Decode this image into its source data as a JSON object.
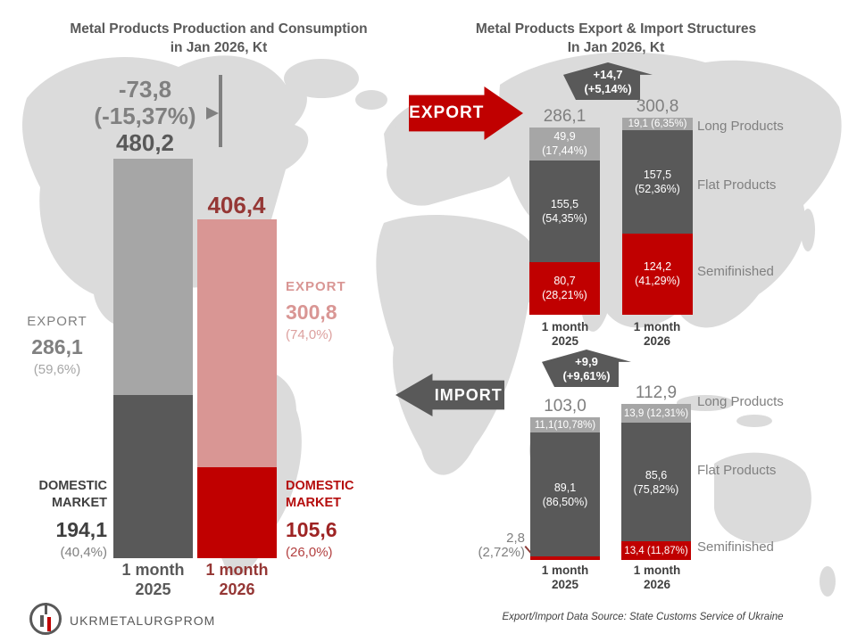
{
  "colors": {
    "accent_red": "#c00000",
    "brick_red": "#953735",
    "pink": "#d99694",
    "light_gray": "#a6a6a6",
    "mid_gray": "#808080",
    "dark_gray": "#595959",
    "text_dark": "#404040",
    "map_gray": "#dbdbdb"
  },
  "left_chart": {
    "title": [
      "Metal Products Production and Consumption",
      "in Jan 2026, Kt"
    ],
    "change": [
      "-73,8",
      "(-15,37%)"
    ],
    "total_2025": "480,2",
    "total_2026": "406,4",
    "y2025": {
      "export_label": "EXPORT",
      "export_value": "286,1",
      "export_pct": "(59,6%)",
      "dom_label": [
        "DOMESTIC",
        "MARKET"
      ],
      "dom_value": "194,1",
      "dom_pct": "(40,4%)",
      "x": [
        "1 month",
        "2025"
      ]
    },
    "y2026": {
      "export_label": "EXPORT",
      "export_value": "300,8",
      "export_pct": "(74,0%)",
      "dom_label": [
        "DOMESTIC",
        "MARKET"
      ],
      "dom_value": "105,6",
      "dom_pct": "(26,0%)",
      "x": [
        "1 month",
        "2026"
      ]
    }
  },
  "right_chart": {
    "title": [
      "Metal Products Export & Import Structures",
      "In Jan 2026, Kt"
    ],
    "export_arrow_label": "EXPORT",
    "import_arrow_label": "IMPORT",
    "export_change": [
      "+14,7",
      "(+5,14%)"
    ],
    "import_change": [
      "+9,9",
      "(+9,61%)"
    ],
    "legend": [
      "Long Products",
      "Flat Products",
      "Semifinished"
    ],
    "export_x": [
      [
        "1 month",
        "2025"
      ],
      [
        "1 month",
        "2026"
      ]
    ],
    "import_x": [
      [
        "1 month",
        "2025"
      ],
      [
        "1 month",
        "2026"
      ]
    ],
    "import_outside_label": [
      "2,8",
      "(2,72%)"
    ]
  },
  "logo_text": "UKRMETALURGPROM",
  "source_note": "Export/Import Data Source: State Customs Service of Ukraine",
  "chart_data": [
    {
      "type": "bar",
      "stacked": true,
      "title": "Metal Products Production and Consumption in Jan 2026, Kt",
      "categories": [
        "1 month 2025",
        "1 month 2026"
      ],
      "totals": [
        480.2,
        406.4
      ],
      "change": {
        "absolute": -73.8,
        "percent": -15.37
      },
      "series": [
        {
          "name": "Export",
          "values": [
            286.1,
            300.8
          ],
          "share_pct": [
            59.6,
            74.0
          ],
          "colors": [
            "#a6a6a6",
            "#d99694"
          ]
        },
        {
          "name": "Domestic Market",
          "values": [
            194.1,
            105.6
          ],
          "share_pct": [
            40.4,
            26.0
          ],
          "colors": [
            "#595959",
            "#c00000"
          ]
        }
      ],
      "baseline_colors": [
        "#595959",
        "#c00000"
      ],
      "legend_position": "none",
      "grid": false
    },
    {
      "type": "bar",
      "stacked": true,
      "title": "Metal Products Export Structure in Jan 2026, Kt",
      "categories": [
        "1 month 2025",
        "1 month 2026"
      ],
      "totals": [
        286.1,
        300.8
      ],
      "total_labels": [
        "286,1",
        "300,8"
      ],
      "change": {
        "absolute": 14.7,
        "percent": 5.14
      },
      "series": [
        {
          "name": "Long Products",
          "color": "#a6a6a6",
          "values": [
            49.9,
            19.1
          ],
          "share_pct": [
            17.44,
            6.35
          ],
          "labels": [
            [
              "49,9",
              "(17,44%)"
            ],
            [
              "19,1 (6,35%)"
            ]
          ]
        },
        {
          "name": "Flat Products",
          "color": "#595959",
          "values": [
            155.5,
            157.5
          ],
          "share_pct": [
            54.35,
            52.36
          ],
          "labels": [
            [
              "155,5",
              "(54,35%)"
            ],
            [
              "157,5",
              "(52,36%)"
            ]
          ]
        },
        {
          "name": "Semifinished",
          "color": "#c00000",
          "values": [
            80.7,
            124.2
          ],
          "share_pct": [
            28.21,
            41.29
          ],
          "labels": [
            [
              "80,7",
              "(28,21%)"
            ],
            [
              "124,2",
              "(41,29%)"
            ]
          ]
        }
      ],
      "legend_position": "right",
      "grid": false
    },
    {
      "type": "bar",
      "stacked": true,
      "title": "Metal Products Import Structure in Jan 2026, Kt",
      "categories": [
        "1 month 2025",
        "1 month 2026"
      ],
      "totals": [
        103.0,
        112.9
      ],
      "total_labels": [
        "103,0",
        "112,9"
      ],
      "change": {
        "absolute": 9.9,
        "percent": 9.61
      },
      "series": [
        {
          "name": "Long Products",
          "color": "#a6a6a6",
          "values": [
            11.1,
            13.9
          ],
          "share_pct": [
            10.78,
            12.31
          ],
          "labels": [
            [
              "11,1(10,78%)"
            ],
            [
              "13,9 (12,31%)"
            ]
          ]
        },
        {
          "name": "Flat Products",
          "color": "#595959",
          "values": [
            89.1,
            85.6
          ],
          "share_pct": [
            86.5,
            75.82
          ],
          "labels": [
            [
              "89,1",
              "(86,50%)"
            ],
            [
              "85,6",
              "(75,82%)"
            ]
          ]
        },
        {
          "name": "Semifinished",
          "color": "#c00000",
          "values": [
            2.8,
            13.4
          ],
          "share_pct": [
            2.72,
            11.87
          ],
          "labels": [
            null,
            [
              "13,4 (11,87%)"
            ]
          ]
        }
      ],
      "legend_position": "right",
      "grid": false
    }
  ]
}
